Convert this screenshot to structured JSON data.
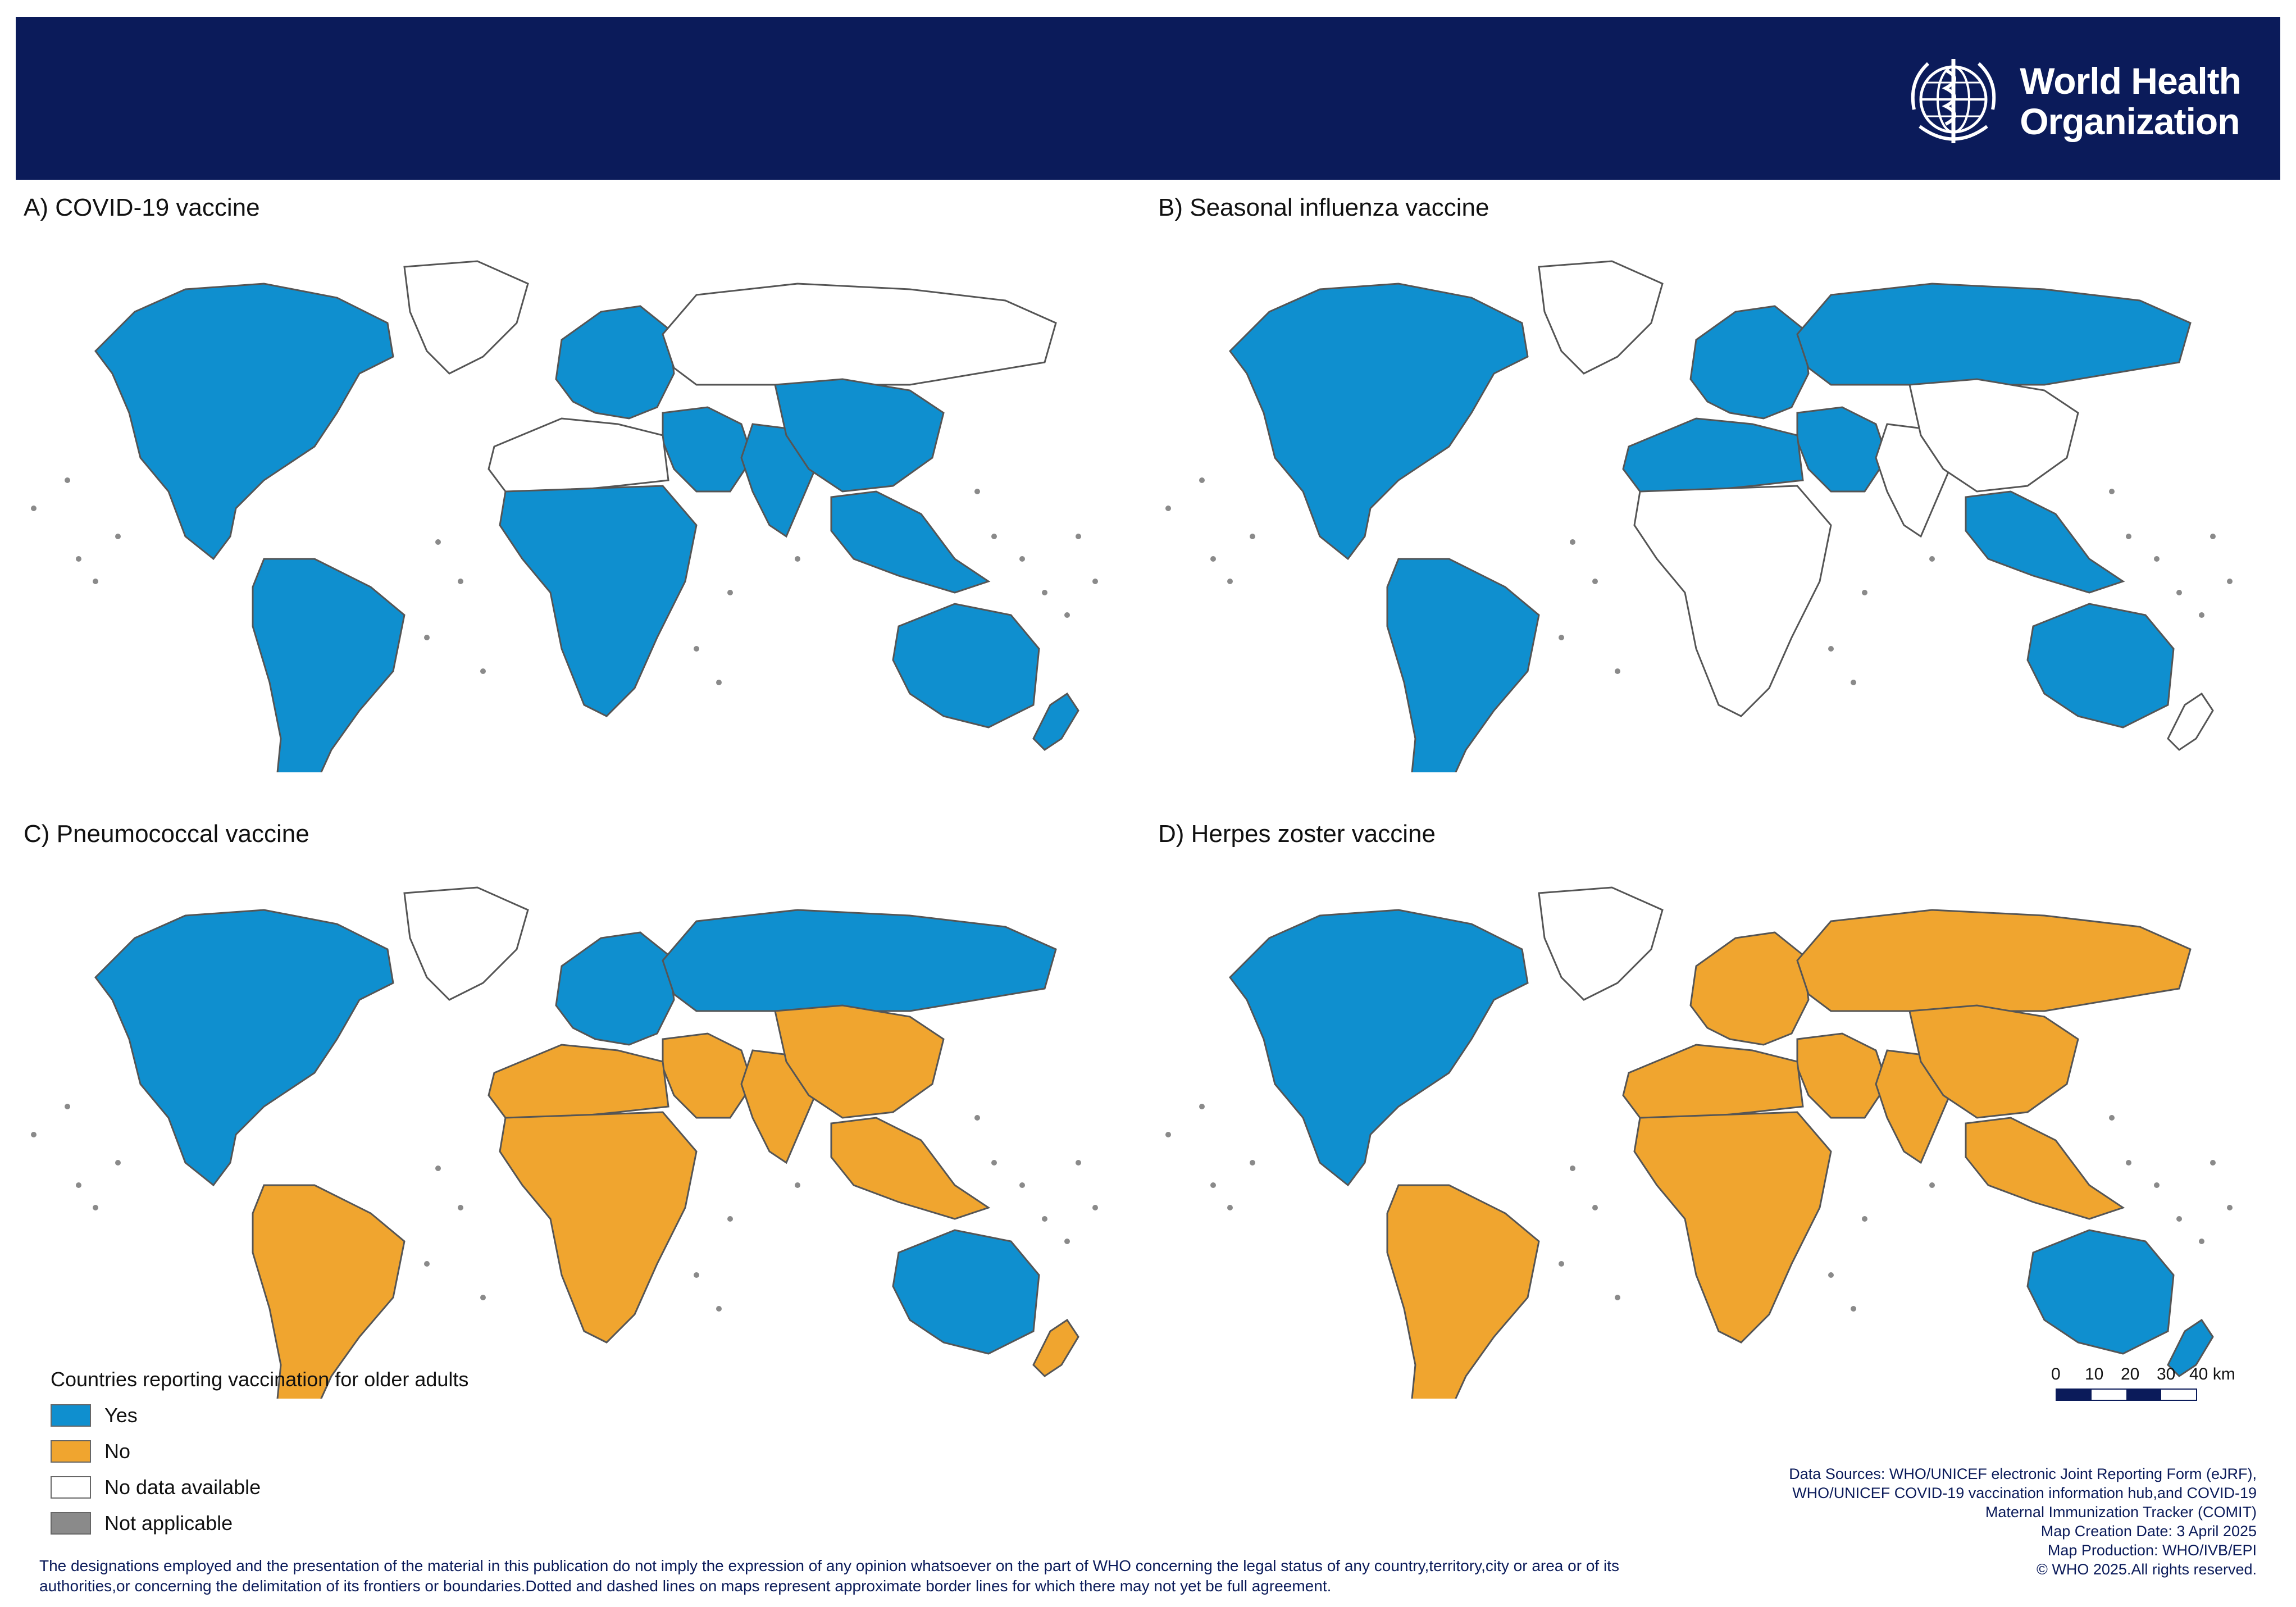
{
  "header": {
    "org_line1": "World Health",
    "org_line2": "Organization",
    "logo_icon": "who-emblem-icon"
  },
  "colors": {
    "banner": "#0b1b5a",
    "yes": "#0f8fcf",
    "no": "#f0a52f",
    "no_data": "#ffffff",
    "not_applicable": "#8a8a8a",
    "border": "#555555"
  },
  "panels": [
    {
      "title": "A) COVID-19 vaccine",
      "regions": {
        "north_america": "yes",
        "greenland": "no_data",
        "south_america": "yes",
        "europe": "yes",
        "russia": "no_data",
        "middle_east": "yes",
        "north_africa": "no_data",
        "africa": "yes",
        "south_asia": "yes",
        "east_asia": "yes",
        "southeast_asia": "yes",
        "australia": "yes",
        "new_zealand": "yes"
      }
    },
    {
      "title": "B) Seasonal influenza vaccine",
      "regions": {
        "north_america": "yes",
        "greenland": "no_data",
        "south_america": "yes",
        "europe": "yes",
        "russia": "yes",
        "middle_east": "yes",
        "north_africa": "yes",
        "africa": "no_data",
        "south_asia": "no_data",
        "east_asia": "no_data",
        "southeast_asia": "yes",
        "australia": "yes",
        "new_zealand": "no_data"
      }
    },
    {
      "title": "C) Pneumococcal vaccine",
      "regions": {
        "north_america": "yes",
        "greenland": "no_data",
        "south_america": "no",
        "europe": "yes",
        "russia": "yes",
        "middle_east": "no",
        "north_africa": "no",
        "africa": "no",
        "south_asia": "no",
        "east_asia": "no",
        "southeast_asia": "no",
        "australia": "yes",
        "new_zealand": "no"
      }
    },
    {
      "title": "D) Herpes zoster vaccine",
      "regions": {
        "north_america": "yes",
        "greenland": "no_data",
        "south_america": "no",
        "europe": "no",
        "russia": "no",
        "middle_east": "no",
        "north_africa": "no",
        "africa": "no",
        "south_asia": "no",
        "east_asia": "no",
        "southeast_asia": "no",
        "australia": "yes",
        "new_zealand": "yes"
      }
    }
  ],
  "legend": {
    "title": "Countries reporting vaccination for older adults",
    "items": [
      {
        "label": "Yes",
        "color": "#0f8fcf"
      },
      {
        "label": "No",
        "color": "#f0a52f"
      },
      {
        "label": "No data available",
        "color": "#ffffff"
      },
      {
        "label": "Not applicable",
        "color": "#8a8a8a"
      }
    ]
  },
  "scale": {
    "labels": [
      "0",
      "10",
      "20",
      "30",
      "40 km"
    ]
  },
  "sources": [
    "Data Sources:  WHO/UNICEF electronic Joint Reporting Form (eJRF),",
    "WHO/UNICEF COVID-19 vaccination information hub,and COVID-19",
    "Maternal Immunization Tracker (COMIT)",
    "Map Creation Date: 3 April 2025",
    "Map Production: WHO/IVB/EPI",
    "© WHO 2025.All rights reserved."
  ],
  "disclaimer": "The designations employed and the presentation of the material in this publication do not imply the expression of any opinion whatsoever on the part of WHO concerning the legal status of any country,territory,city or area or of its authorities,or concerning the delimitation of its frontiers or boundaries.Dotted and dashed lines on maps represent approximate border lines for which there may not yet be full agreement."
}
